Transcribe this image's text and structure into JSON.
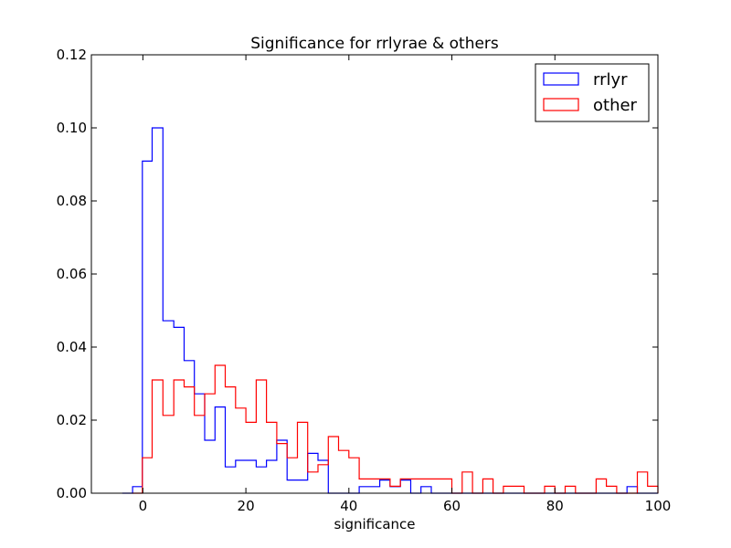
{
  "chart_data": {
    "type": "histogram",
    "title": "Significance for rrlyrae & others",
    "xlabel": "significance",
    "ylabel": "",
    "xlim": [
      -10,
      100
    ],
    "ylim": [
      0,
      0.12
    ],
    "xticks": [
      "0",
      "20",
      "40",
      "60",
      "80",
      "100"
    ],
    "xtick_values": [
      0,
      20,
      40,
      60,
      80,
      100
    ],
    "yticks": [
      "0.00",
      "0.02",
      "0.04",
      "0.06",
      "0.08",
      "0.10",
      "0.12"
    ],
    "ytick_values": [
      0,
      0.02,
      0.04,
      0.06,
      0.08,
      0.1,
      0.12
    ],
    "grid": false,
    "legend_position": "top-right",
    "series": [
      {
        "name": "rrlyr",
        "color": "#0000ff",
        "steps": [
          [
            -4,
            0.0
          ],
          [
            -2,
            0.0018
          ],
          [
            -0.1,
            0.0909
          ],
          [
            1.8,
            0.1
          ],
          [
            3.9,
            0.0472
          ],
          [
            6,
            0.0454
          ],
          [
            8,
            0.0363
          ],
          [
            10,
            0.0272
          ],
          [
            12,
            0.0145
          ],
          [
            14,
            0.0236
          ],
          [
            16,
            0.0072
          ],
          [
            18,
            0.009
          ],
          [
            20,
            0.009
          ],
          [
            22,
            0.0072
          ],
          [
            24,
            0.009
          ],
          [
            26,
            0.0145
          ],
          [
            28,
            0.0036
          ],
          [
            30,
            0.0036
          ],
          [
            32,
            0.0109
          ],
          [
            34,
            0.009
          ],
          [
            36,
            0.0
          ],
          [
            38,
            0.0
          ],
          [
            40,
            0.0
          ],
          [
            42,
            0.0018
          ],
          [
            44,
            0.0018
          ],
          [
            46,
            0.0036
          ],
          [
            48,
            0.0018
          ],
          [
            50,
            0.0036
          ],
          [
            52,
            0.0
          ],
          [
            54,
            0.0018
          ],
          [
            56,
            0.0
          ],
          [
            58,
            0.0
          ],
          [
            60,
            0.0
          ],
          [
            62,
            0.0
          ],
          [
            64,
            0.0
          ],
          [
            66,
            0.0
          ],
          [
            68,
            0.0
          ],
          [
            70,
            0.0
          ],
          [
            72,
            0.0
          ],
          [
            74,
            0.0
          ],
          [
            76,
            0.0
          ],
          [
            78,
            0.0
          ],
          [
            80,
            0.0
          ],
          [
            82,
            0.0
          ],
          [
            84,
            0.0
          ],
          [
            86,
            0.0
          ],
          [
            88,
            0.0
          ],
          [
            90,
            0.0
          ],
          [
            92,
            0.0
          ],
          [
            94,
            0.0018
          ],
          [
            96,
            0.0
          ],
          [
            98,
            0.0
          ],
          [
            100,
            0.0
          ]
        ]
      },
      {
        "name": "other",
        "color": "#ff0000",
        "steps": [
          [
            -2,
            0.0
          ],
          [
            -0.1,
            0.0097
          ],
          [
            1.8,
            0.031
          ],
          [
            3.9,
            0.0213
          ],
          [
            6,
            0.031
          ],
          [
            8,
            0.0291
          ],
          [
            10,
            0.0213
          ],
          [
            12,
            0.0272
          ],
          [
            14,
            0.035
          ],
          [
            16,
            0.0291
          ],
          [
            18,
            0.0233
          ],
          [
            20,
            0.0194
          ],
          [
            22,
            0.031
          ],
          [
            24,
            0.0194
          ],
          [
            26,
            0.0136
          ],
          [
            28,
            0.0097
          ],
          [
            30,
            0.0194
          ],
          [
            32,
            0.0058
          ],
          [
            34,
            0.0078
          ],
          [
            36,
            0.0155
          ],
          [
            38,
            0.0117
          ],
          [
            40,
            0.0097
          ],
          [
            42,
            0.0039
          ],
          [
            44,
            0.0039
          ],
          [
            46,
            0.0039
          ],
          [
            48,
            0.0019
          ],
          [
            50,
            0.0039
          ],
          [
            52,
            0.0039
          ],
          [
            54,
            0.0039
          ],
          [
            56,
            0.0039
          ],
          [
            58,
            0.0039
          ],
          [
            60,
            0.0
          ],
          [
            62,
            0.0058
          ],
          [
            64,
            0.0
          ],
          [
            66,
            0.0039
          ],
          [
            68,
            0.0
          ],
          [
            70,
            0.0019
          ],
          [
            72,
            0.0019
          ],
          [
            74,
            0.0
          ],
          [
            76,
            0.0
          ],
          [
            78,
            0.0019
          ],
          [
            80,
            0.0
          ],
          [
            82,
            0.0019
          ],
          [
            84,
            0.0
          ],
          [
            86,
            0.0
          ],
          [
            88,
            0.0039
          ],
          [
            90,
            0.0019
          ],
          [
            92,
            0.0
          ],
          [
            94,
            0.0
          ],
          [
            96,
            0.0058
          ],
          [
            98,
            0.0019
          ],
          [
            100,
            0.0
          ]
        ]
      }
    ]
  }
}
